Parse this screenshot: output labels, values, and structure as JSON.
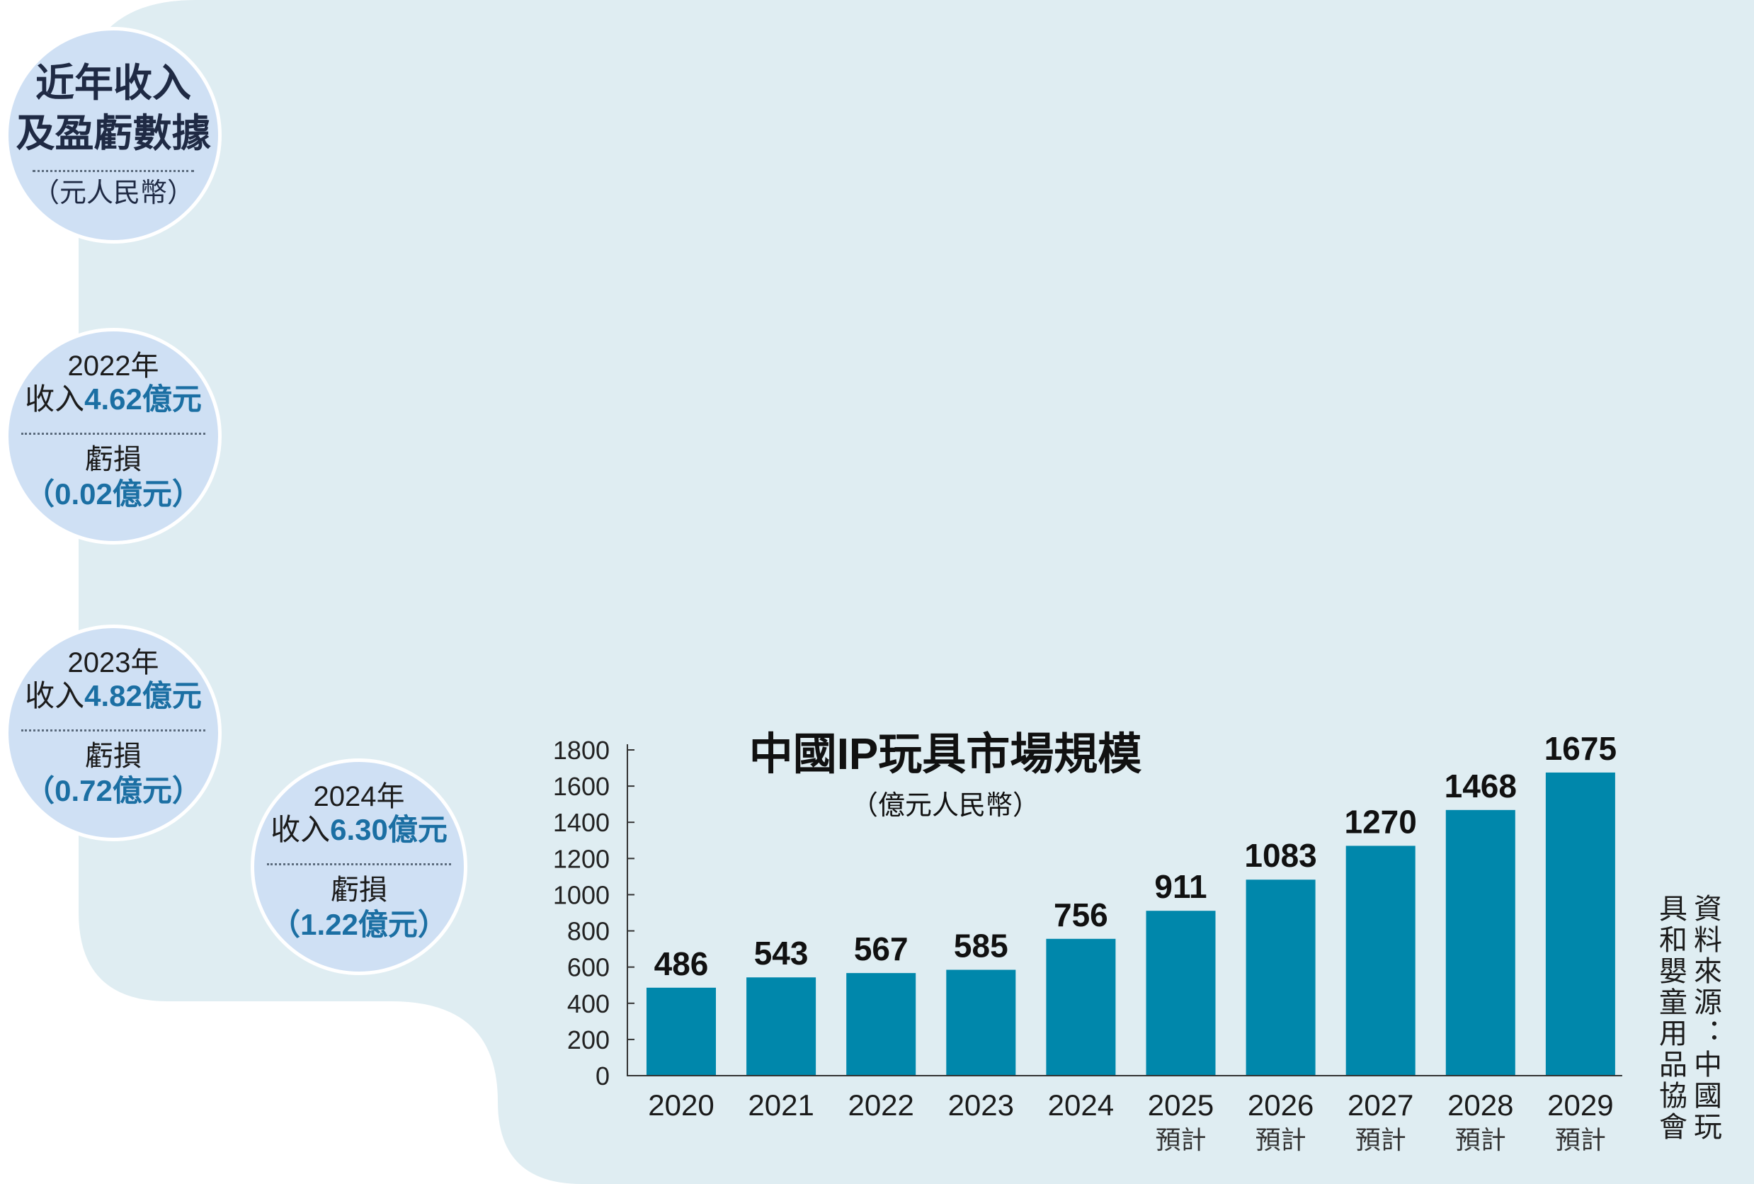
{
  "summary": {
    "title_line1": "近年收入",
    "title_line2": "及盈虧數據",
    "unit": "（元人民幣）"
  },
  "financials": [
    {
      "year": "2022年",
      "revenue_label": "收入",
      "revenue": "4.62億元",
      "loss_label": "虧損",
      "loss": "（0.02億元）"
    },
    {
      "year": "2023年",
      "revenue_label": "收入",
      "revenue": "4.82億元",
      "loss_label": "虧損",
      "loss": "（0.72億元）"
    },
    {
      "year": "2024年",
      "revenue_label": "收入",
      "revenue": "6.30億元",
      "loss_label": "虧損",
      "loss": "（1.22億元）"
    }
  ],
  "chart_data": {
    "type": "bar",
    "title": "中國IP玩具市場規模",
    "subtitle": "（億元人民幣）",
    "xlabel": "",
    "ylabel": "",
    "categories": [
      "2020",
      "2021",
      "2022",
      "2023",
      "2024",
      "2025",
      "2026",
      "2027",
      "2028",
      "2029"
    ],
    "values": [
      486,
      543,
      567,
      585,
      756,
      911,
      1083,
      1270,
      1468,
      1675
    ],
    "forecast": [
      false,
      false,
      false,
      false,
      false,
      true,
      true,
      true,
      true,
      true
    ],
    "forecast_label": "預計",
    "ylim": [
      0,
      1800
    ],
    "yticks": [
      0,
      200,
      400,
      600,
      800,
      1000,
      1200,
      1400,
      1600,
      1800
    ],
    "grid": false,
    "data_labels": true,
    "bar_color": "#0087ab"
  },
  "source_lines": [
    "資料來源：中國玩",
    "具和嬰童用品協會"
  ],
  "colors": {
    "page": "#ffffff",
    "panel": "#dfedf2",
    "circle": "#cfe0f4",
    "highlight": "#1b6fa3",
    "text": "#1c2233"
  }
}
